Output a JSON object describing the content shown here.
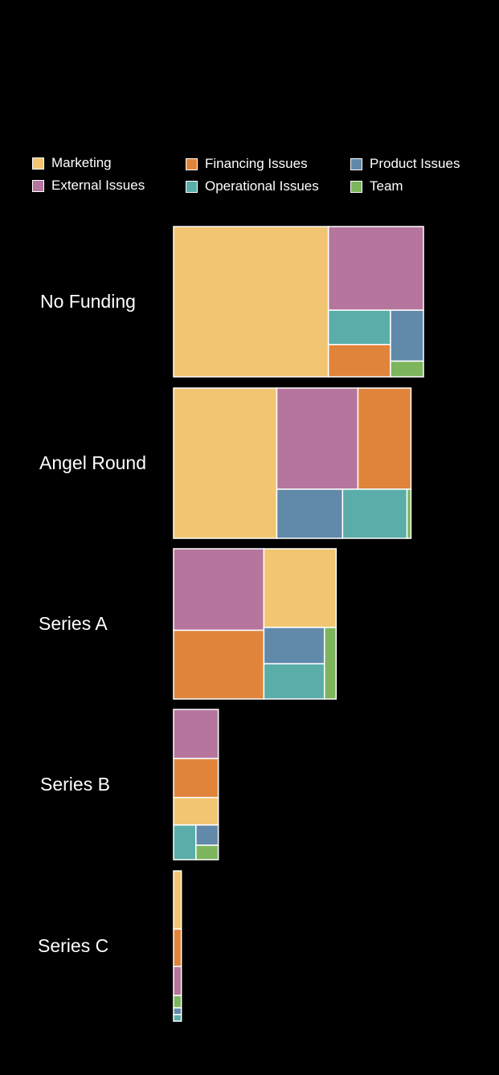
{
  "chart_data": {
    "type": "treemap",
    "title": "",
    "legend": [
      {
        "name": "Marketing",
        "color": "#F2C572"
      },
      {
        "name": "External Issues",
        "color": "#B5759C"
      },
      {
        "name": "Financing Issues",
        "color": "#E0843C"
      },
      {
        "name": "Operational Issues",
        "color": "#5AADA9"
      },
      {
        "name": "Product Issues",
        "color": "#6189AA"
      },
      {
        "name": "Team",
        "color": "#7DB55E"
      }
    ],
    "legend_placement": "top",
    "rows": [
      {
        "label": "No Funding",
        "cells": [
          {
            "category": "Marketing",
            "value": 36
          },
          {
            "category": "External Issues",
            "value": 12.3
          },
          {
            "category": "Operational Issues",
            "value": 3.3
          },
          {
            "category": "Financing Issues",
            "value": 3.1
          },
          {
            "category": "Product Issues",
            "value": 2.6
          },
          {
            "category": "Team",
            "value": 0.8
          }
        ]
      },
      {
        "label": "Angel Round",
        "cells": [
          {
            "category": "Marketing",
            "value": 24
          },
          {
            "category": "External Issues",
            "value": 12.7
          },
          {
            "category": "Financing Issues",
            "value": 8.3
          },
          {
            "category": "Product Issues",
            "value": 5
          },
          {
            "category": "Operational Issues",
            "value": 4.9
          },
          {
            "category": "Team",
            "value": 0.3
          }
        ]
      },
      {
        "label": "Series A",
        "cells": [
          {
            "category": "External Issues",
            "value": 11.4
          },
          {
            "category": "Marketing",
            "value": 8.8
          },
          {
            "category": "Financing Issues",
            "value": 9.6
          },
          {
            "category": "Product Issues",
            "value": 3.4
          },
          {
            "category": "Operational Issues",
            "value": 3.3
          },
          {
            "category": "Team",
            "value": 1.3
          }
        ]
      },
      {
        "label": "Series B",
        "cells": [
          {
            "category": "External Issues",
            "value": 3.4
          },
          {
            "category": "Financing Issues",
            "value": 2.7
          },
          {
            "category": "Marketing",
            "value": 1.9
          },
          {
            "category": "Operational Issues",
            "value": 1.2
          },
          {
            "category": "Product Issues",
            "value": 0.7
          },
          {
            "category": "Team",
            "value": 0.5
          }
        ]
      },
      {
        "label": "Series C",
        "cells": [
          {
            "category": "Marketing",
            "value": 0.7
          },
          {
            "category": "Financing Issues",
            "value": 0.45
          },
          {
            "category": "External Issues",
            "value": 0.35
          },
          {
            "category": "Team",
            "value": 0.15
          },
          {
            "category": "Product Issues",
            "value": 0.08
          },
          {
            "category": "Operational Issues",
            "value": 0.08
          }
        ]
      }
    ]
  }
}
